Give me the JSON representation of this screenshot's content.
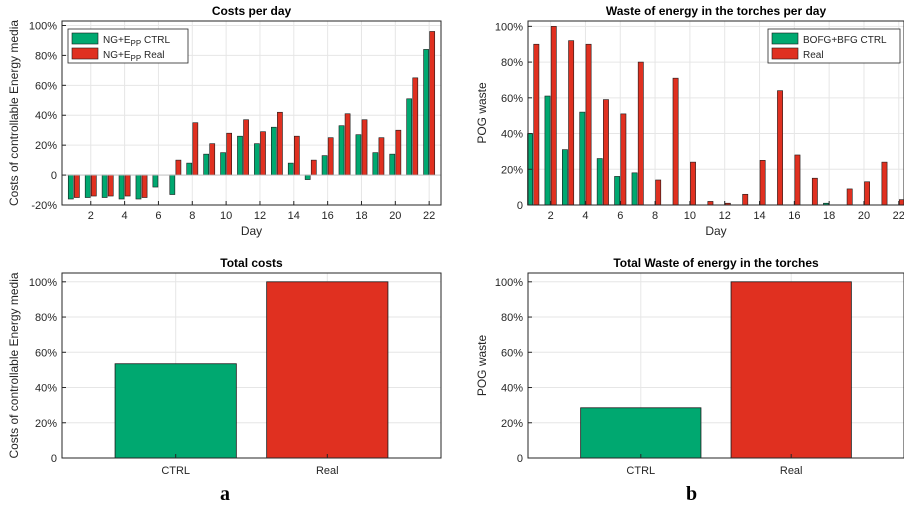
{
  "panel_labels": [
    "a",
    "b"
  ],
  "colors": {
    "green": "#00a870",
    "red": "#e03020",
    "grid": "#e6e6e6",
    "axis": "#262626"
  },
  "chart_data": [
    {
      "id": "costs-per-day",
      "type": "bar",
      "title": "Costs per day",
      "xlabel": "Day",
      "ylabel": "Costs of controllable Energy media",
      "x": [
        1,
        2,
        3,
        4,
        5,
        6,
        7,
        8,
        9,
        10,
        11,
        12,
        13,
        14,
        15,
        16,
        17,
        18,
        19,
        20,
        21,
        22
      ],
      "xticks": [
        2,
        4,
        6,
        8,
        10,
        12,
        14,
        16,
        18,
        20,
        22
      ],
      "yticks": [
        -20,
        0,
        20,
        40,
        60,
        80,
        100
      ],
      "ytick_labels": [
        "-20%",
        "0",
        "20%",
        "40%",
        "60%",
        "80%",
        "100%"
      ],
      "ylim": [
        -20,
        103
      ],
      "xlim": [
        0.3,
        22.7
      ],
      "grid": true,
      "legend_position": "top-left",
      "series": [
        {
          "name": "NG+E",
          "sub": "PP",
          "suffix": " CTRL",
          "color": "#00a870",
          "values": [
            -16,
            -15,
            -15,
            -16,
            -16,
            -8,
            -13,
            8,
            14,
            15,
            26,
            21,
            32,
            8,
            -3,
            13,
            33,
            27,
            15,
            14,
            51,
            84
          ]
        },
        {
          "name": "NG+E",
          "sub": "PP",
          "suffix": " Real",
          "color": "#e03020",
          "values": [
            -15,
            -14,
            -14,
            -14,
            -15,
            0,
            10,
            35,
            21,
            28,
            37,
            29,
            42,
            26,
            10,
            25,
            41,
            37,
            25,
            30,
            65,
            96
          ]
        }
      ]
    },
    {
      "id": "waste-per-day",
      "type": "bar",
      "title": "Waste of energy in the torches per day",
      "xlabel": "Day",
      "ylabel": "POG waste",
      "x": [
        1,
        2,
        3,
        4,
        5,
        6,
        7,
        8,
        9,
        10,
        11,
        12,
        13,
        14,
        15,
        16,
        17,
        18,
        19,
        20,
        21,
        22
      ],
      "xticks": [
        2,
        4,
        6,
        8,
        10,
        12,
        14,
        16,
        18,
        20,
        22
      ],
      "yticks": [
        0,
        20,
        40,
        60,
        80,
        100
      ],
      "ytick_labels": [
        "0",
        "20%",
        "40%",
        "60%",
        "80%",
        "100%"
      ],
      "ylim": [
        0,
        103
      ],
      "xlim": [
        0.7,
        22.3
      ],
      "grid": true,
      "legend_position": "top-right",
      "series": [
        {
          "name": "BOFG+BFG CTRL",
          "color": "#00a870",
          "values": [
            40,
            61,
            31,
            52,
            26,
            16,
            18,
            0,
            0,
            0,
            0,
            0,
            0,
            0,
            0,
            0,
            0,
            1,
            0,
            0,
            0,
            0
          ]
        },
        {
          "name": "Real",
          "color": "#e03020",
          "values": [
            90,
            100,
            92,
            90,
            59,
            51,
            80,
            14,
            71,
            24,
            2,
            1,
            6,
            25,
            64,
            28,
            15,
            0,
            9,
            13,
            24,
            3
          ]
        }
      ]
    },
    {
      "id": "total-costs",
      "type": "bar",
      "title": "Total costs",
      "xlabel": "",
      "ylabel": "Costs of controllable Energy media",
      "categories": [
        "CTRL",
        "Real"
      ],
      "values": [
        53.5,
        100
      ],
      "colors": [
        "#00a870",
        "#e03020"
      ],
      "yticks": [
        0,
        20,
        40,
        60,
        80,
        100
      ],
      "ytick_labels": [
        "0",
        "20%",
        "40%",
        "60%",
        "80%",
        "100%"
      ],
      "ylim": [
        0,
        105
      ],
      "grid": true
    },
    {
      "id": "total-waste",
      "type": "bar",
      "title": "Total Waste of energy in the torches",
      "xlabel": "",
      "ylabel": "POG waste",
      "categories": [
        "CTRL",
        "Real"
      ],
      "values": [
        28.5,
        100
      ],
      "colors": [
        "#00a870",
        "#e03020"
      ],
      "yticks": [
        0,
        20,
        40,
        60,
        80,
        100
      ],
      "ytick_labels": [
        "0",
        "20%",
        "40%",
        "60%",
        "80%",
        "100%"
      ],
      "ylim": [
        0,
        105
      ],
      "grid": true
    }
  ]
}
